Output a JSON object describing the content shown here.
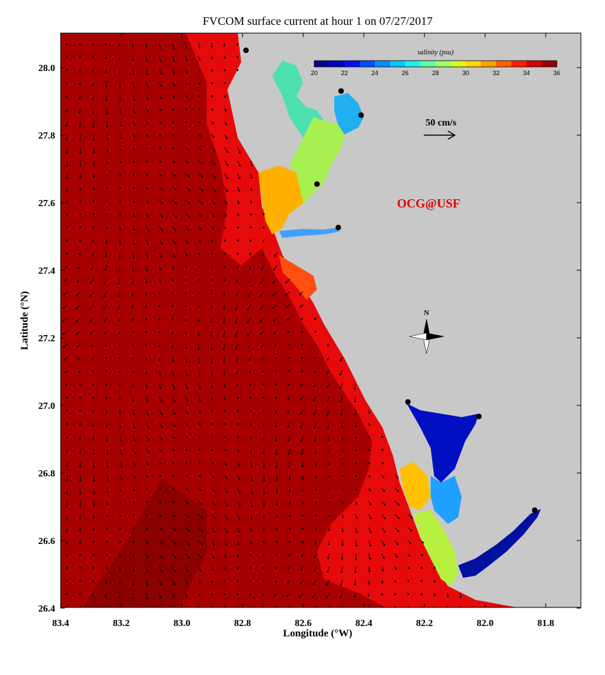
{
  "figure": {
    "title": "FVCOM surface current at hour 1 on 07/27/2017",
    "xlabel": "Longitude (°W)",
    "ylabel": "Latitude (°N)",
    "watermark": "OCG@USF",
    "north_label": "N"
  },
  "axes": {
    "lon_range": [
      83.4,
      81.7
    ],
    "lat_range": [
      26.4,
      28.1
    ],
    "x_ticks": [
      "83.4",
      "83.2",
      "83.0",
      "82.8",
      "82.6",
      "82.4",
      "82.2",
      "82.0",
      "81.8"
    ],
    "y_ticks": [
      "28.0",
      "27.8",
      "27.6",
      "27.4",
      "27.2",
      "27.0",
      "26.8",
      "26.6",
      "26.4"
    ]
  },
  "colorbar": {
    "title": "salinity (psu)",
    "ticks": [
      "20",
      "22",
      "24",
      "26",
      "28",
      "30",
      "32",
      "34",
      "36"
    ],
    "range": [
      20,
      36
    ],
    "colors": [
      "#00008f",
      "#0000bf",
      "#0010ef",
      "#0050ff",
      "#0090ff",
      "#00c8ff",
      "#20f0e8",
      "#60ffa0",
      "#a0ff60",
      "#d8ff20",
      "#ffd800",
      "#ffa000",
      "#ff6000",
      "#ff2000",
      "#d80000",
      "#9a0000"
    ]
  },
  "scale": {
    "label": "50 cm/s",
    "speed_cm_s": 50
  },
  "colors": {
    "land": "#c8c8c8",
    "ocean_main": "#e60a0a",
    "ocean_dark": "#a80000",
    "ocean_darker": "#8c0000",
    "coast_band": "#f01010",
    "arrow": "#000000"
  },
  "bays": {
    "tampa_upper": "#4de0b0",
    "tampa_mid": "#a8f050",
    "tampa_low": "#ffb000",
    "hillsborough": "#20b0f0",
    "manatee_river": "#40a0ff",
    "charlotte_upper": "#0010c0",
    "charlotte_mid": "#20a0ff",
    "charlotte_low": "#ffc000",
    "pine_island": "#b8f040",
    "caloosahatchee": "#0010a0",
    "sarasota_bay": "#ff5010"
  }
}
